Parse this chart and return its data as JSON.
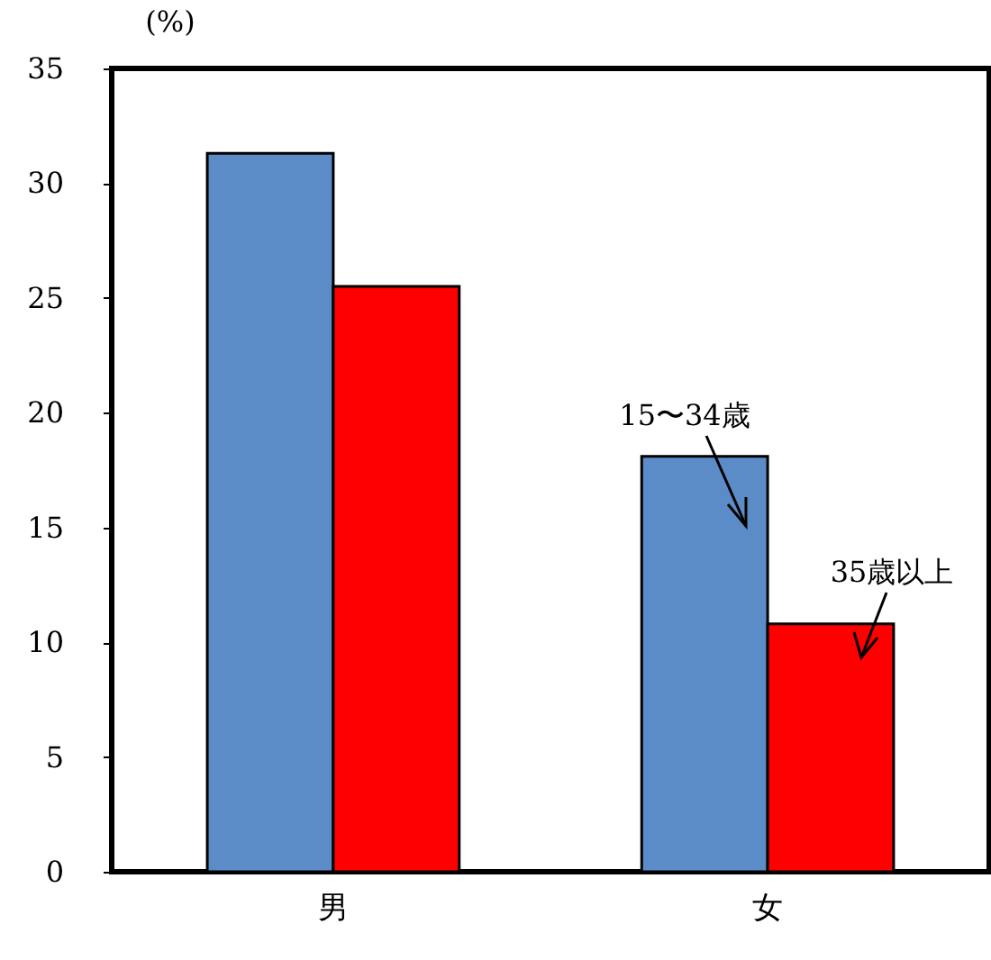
{
  "chart_data": {
    "type": "bar",
    "ylabel": "(%)",
    "categories": [
      "男",
      "女"
    ],
    "series": [
      {
        "name": "15〜34歳",
        "color": "#5b8cc8",
        "values": [
          31.3,
          18.1
        ]
      },
      {
        "name": "35歳以上",
        "color": "#ff0000",
        "values": [
          25.5,
          10.8
        ]
      }
    ],
    "ylim": [
      0,
      35
    ],
    "yticks": [
      0,
      5,
      10,
      15,
      20,
      25,
      30,
      35
    ],
    "grid": false,
    "legend": false
  }
}
